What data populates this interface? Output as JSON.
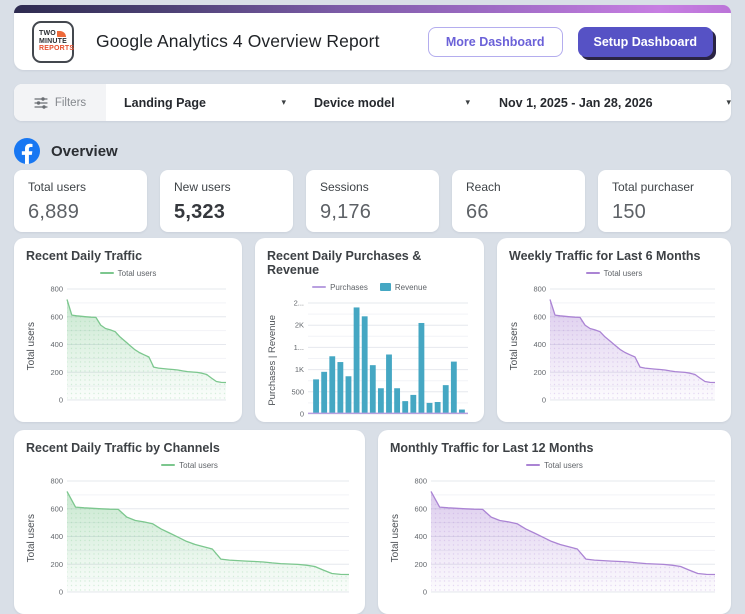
{
  "header": {
    "logo_lines": [
      "TWO",
      "MINUTE",
      "REPORTS"
    ],
    "title": "Google Analytics 4 Overview Report",
    "buttons": {
      "more": "More Dashboard",
      "setup": "Setup Dashboard"
    }
  },
  "filter_bar": {
    "filters_label": "Filters",
    "dropdown1": "Landing Page",
    "dropdown2": "Device model",
    "date_range": "Nov 1, 2025 - Jan 28, 2026"
  },
  "overview": {
    "title": "Overview"
  },
  "kpis": [
    {
      "label": "Total users",
      "value": "6,889"
    },
    {
      "label": "New users",
      "value": "5,323"
    },
    {
      "label": "Sessions",
      "value": "9,176"
    },
    {
      "label": "Reach",
      "value": "66"
    },
    {
      "label": "Total purchaser",
      "value": "150"
    }
  ],
  "colors": {
    "accent_purple": "#5652c5",
    "brand_orange": "#ee6a3a",
    "facebook_blue": "#1877f2",
    "green_series": "#7cc78e",
    "purple_series": "#ab84d4",
    "teal_series": "#45a7c3",
    "header_gradient_start": "#2e2b50",
    "header_gradient_end": "#c77ee2"
  },
  "chart_data": [
    {
      "type": "area",
      "title": "Recent Daily Traffic",
      "ylabel": "Total users",
      "ylim": [
        0,
        800
      ],
      "ytick_values": [
        0,
        200,
        400,
        600,
        800
      ],
      "ytick_labels": [
        "0",
        "200",
        "400",
        "600",
        "800"
      ],
      "grid": true,
      "legend_position": "top",
      "series": [
        {
          "name": "Total users",
          "kind": "area",
          "color": "#7cc78e",
          "values": [
            725,
            612,
            607,
            603,
            600,
            597,
            595,
            540,
            515,
            505,
            492,
            455,
            425,
            395,
            365,
            342,
            326,
            310,
            237,
            230,
            226,
            223,
            220,
            216,
            210,
            205,
            202,
            199,
            193,
            184,
            158,
            133,
            127,
            126
          ]
        }
      ]
    },
    {
      "type": "bar",
      "title": "Recent Daily Purchases & Revenue",
      "ylabel": "Purchases | Revenue",
      "ylim": [
        0,
        2500
      ],
      "ytick_values": [
        0,
        500,
        1000,
        1500,
        2000,
        2500
      ],
      "ytick_labels": [
        "0",
        "500",
        "1K",
        "1...",
        "2K",
        "2..."
      ],
      "grid": true,
      "legend_position": "top",
      "series": [
        {
          "name": "Purchases",
          "kind": "line",
          "color": "#b9a0e0",
          "values": [
            15,
            15,
            15,
            15,
            15,
            15,
            15,
            15,
            15,
            15,
            15,
            15,
            15,
            15,
            15,
            15,
            15,
            15,
            15
          ]
        },
        {
          "name": "Revenue",
          "kind": "bar",
          "color": "#45a7c3",
          "values": [
            780,
            950,
            1300,
            1170,
            850,
            2400,
            2200,
            1100,
            580,
            1340,
            580,
            290,
            430,
            2050,
            250,
            270,
            650,
            1180,
            100
          ]
        }
      ]
    },
    {
      "type": "area",
      "title": "Weekly Traffic for Last 6 Months",
      "ylabel": "Total users",
      "ylim": [
        0,
        800
      ],
      "ytick_values": [
        0,
        200,
        400,
        600,
        800
      ],
      "ytick_labels": [
        "0",
        "200",
        "400",
        "600",
        "800"
      ],
      "grid": true,
      "legend_position": "top",
      "series": [
        {
          "name": "Total users",
          "kind": "area",
          "color": "#ab84d4",
          "values": [
            725,
            612,
            607,
            603,
            600,
            597,
            595,
            540,
            515,
            505,
            492,
            455,
            425,
            395,
            365,
            342,
            326,
            310,
            237,
            230,
            226,
            223,
            220,
            216,
            210,
            205,
            202,
            199,
            193,
            184,
            158,
            133,
            127,
            126
          ]
        }
      ]
    },
    {
      "type": "area",
      "title": "Recent Daily Traffic by Channels",
      "ylabel": "Total users",
      "ylim": [
        0,
        800
      ],
      "ytick_values": [
        0,
        200,
        400,
        600,
        800
      ],
      "ytick_labels": [
        "0",
        "200",
        "400",
        "600",
        "800"
      ],
      "grid": true,
      "legend_position": "top",
      "series": [
        {
          "name": "Total users",
          "kind": "area",
          "color": "#7cc78e",
          "values": [
            725,
            612,
            607,
            603,
            600,
            597,
            595,
            540,
            515,
            505,
            492,
            455,
            425,
            395,
            365,
            342,
            326,
            310,
            237,
            230,
            226,
            223,
            220,
            216,
            210,
            205,
            202,
            199,
            193,
            184,
            158,
            133,
            127,
            126
          ]
        }
      ]
    },
    {
      "type": "area",
      "title": "Monthly Traffic for Last 12 Months",
      "ylabel": "Total users",
      "ylim": [
        0,
        800
      ],
      "ytick_values": [
        0,
        200,
        400,
        600,
        800
      ],
      "ytick_labels": [
        "0",
        "200",
        "400",
        "600",
        "800"
      ],
      "grid": true,
      "legend_position": "top",
      "series": [
        {
          "name": "Total users",
          "kind": "area",
          "color": "#ab84d4",
          "values": [
            725,
            612,
            607,
            603,
            600,
            597,
            595,
            540,
            515,
            505,
            492,
            455,
            425,
            395,
            365,
            342,
            326,
            310,
            237,
            230,
            226,
            223,
            220,
            216,
            210,
            205,
            202,
            199,
            193,
            184,
            158,
            133,
            127,
            126
          ]
        }
      ]
    }
  ]
}
